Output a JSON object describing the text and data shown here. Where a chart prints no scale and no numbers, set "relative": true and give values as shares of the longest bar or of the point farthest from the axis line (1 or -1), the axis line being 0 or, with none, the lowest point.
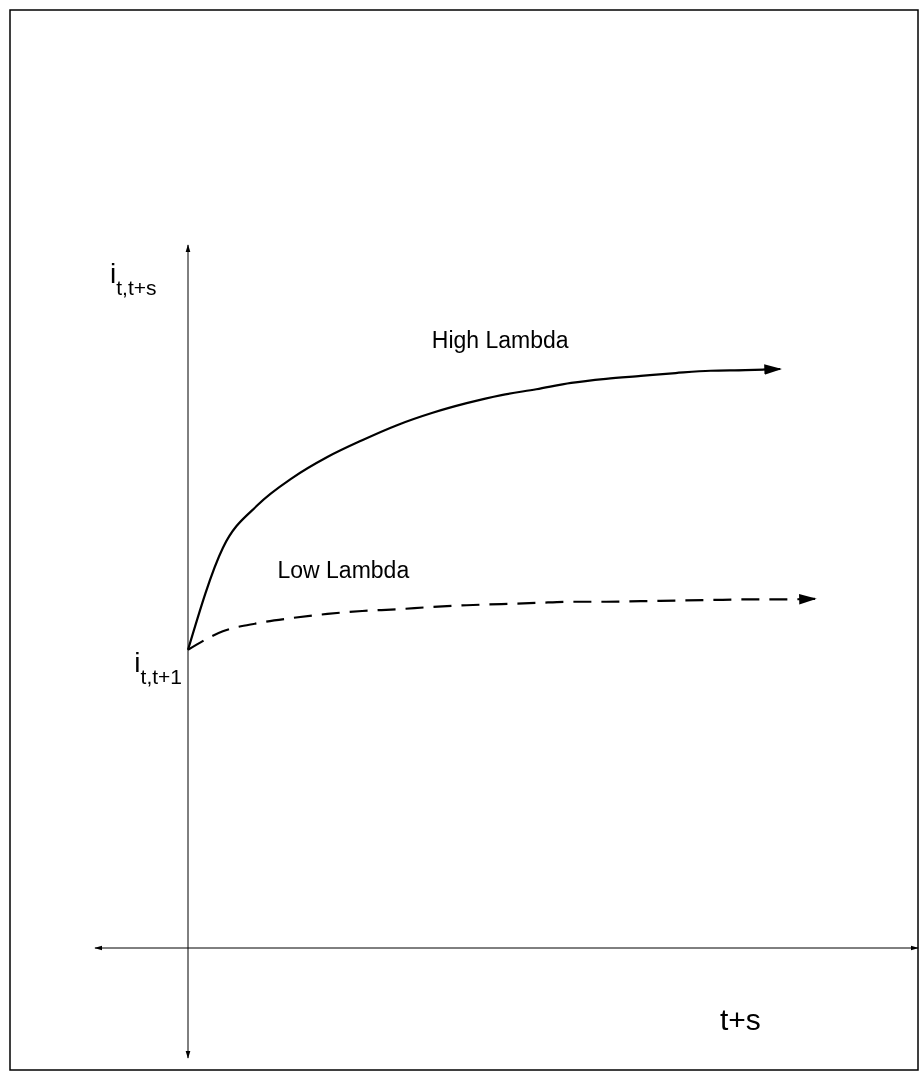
{
  "chart_data": {
    "type": "line",
    "relative": true,
    "ylabel": "i$_{t,t+s}$",
    "xlabel": "t+s",
    "marker": "none",
    "categories": [
      null,
      null,
      null,
      null,
      null,
      null,
      null,
      null,
      null,
      null,
      null,
      null,
      null,
      null,
      null,
      null,
      null,
      null,
      null
    ],
    "series": [
      {
        "name": "High Lambda",
        "color": "#000000",
        "line_style": "solid",
        "values": [
          0.515,
          0.691,
          0.765,
          0.812,
          0.848,
          0.877,
          0.903,
          0.924,
          0.941,
          0.955,
          0.965,
          0.976,
          0.983,
          0.988,
          0.993,
          0.997,
          0.998,
          1,
          null
        ]
      },
      {
        "name": "Low Lambda",
        "color": "#000000",
        "line_style": "dashed",
        "values": [
          0.515,
          0.547,
          0.561,
          0.57,
          0.577,
          0.582,
          0.585,
          0.589,
          0.592,
          0.594,
          0.596,
          0.598,
          0.598,
          0.599,
          0.6,
          0.601,
          0.602,
          0.602,
          0.603
        ]
      }
    ],
    "annotations": [
      "i$_{t,t+1}$"
    ]
  }
}
